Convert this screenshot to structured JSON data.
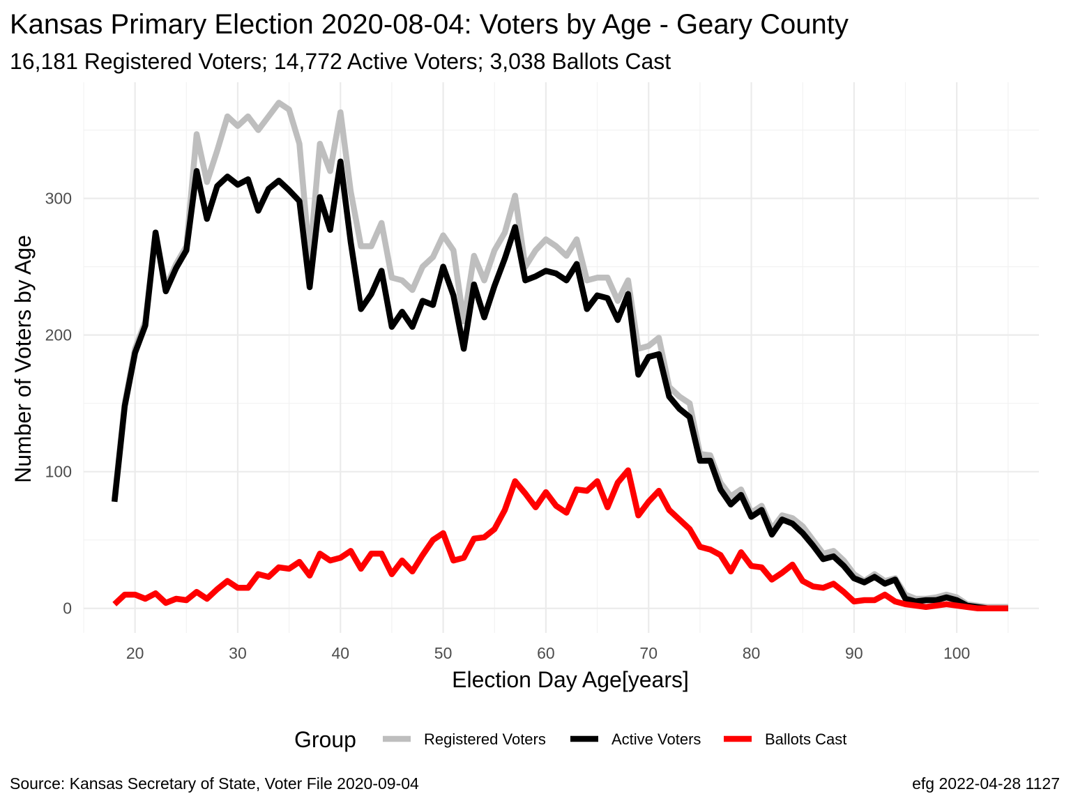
{
  "chart_data": {
    "type": "line",
    "title": "Kansas Primary Election 2020-08-04:  Voters by Age - Geary County",
    "subtitle": "16,181 Registered Voters; 14,772 Active Voters; 3,038 Ballots Cast",
    "xlabel": "Election Day Age[years]",
    "ylabel": "Number of Voters by Age",
    "xlim": [
      15,
      108
    ],
    "ylim": [
      -18,
      385
    ],
    "x_ticks": [
      20,
      30,
      40,
      50,
      60,
      70,
      80,
      90,
      100
    ],
    "y_ticks": [
      0,
      100,
      200,
      300
    ],
    "grid": true,
    "legend": {
      "title": "Group",
      "position": "bottom"
    },
    "x": [
      18,
      19,
      20,
      21,
      22,
      23,
      24,
      25,
      26,
      27,
      28,
      29,
      30,
      31,
      32,
      33,
      34,
      35,
      36,
      37,
      38,
      39,
      40,
      41,
      42,
      43,
      44,
      45,
      46,
      47,
      48,
      49,
      50,
      51,
      52,
      53,
      54,
      55,
      56,
      57,
      58,
      59,
      60,
      61,
      62,
      63,
      64,
      65,
      66,
      67,
      68,
      69,
      70,
      71,
      72,
      73,
      74,
      75,
      76,
      77,
      78,
      79,
      80,
      81,
      82,
      83,
      84,
      85,
      86,
      87,
      88,
      89,
      90,
      91,
      92,
      93,
      94,
      95,
      96,
      97,
      98,
      99,
      100,
      101,
      102,
      103,
      104,
      105
    ],
    "series": [
      {
        "name": "Registered Voters",
        "color": "#bebebe",
        "values": [
          80,
          150,
          190,
          210,
          275,
          235,
          252,
          265,
          347,
          312,
          335,
          360,
          353,
          360,
          350,
          360,
          370,
          365,
          340,
          255,
          340,
          320,
          363,
          305,
          265,
          265,
          282,
          242,
          240,
          233,
          250,
          257,
          273,
          262,
          210,
          258,
          240,
          262,
          275,
          302,
          250,
          262,
          270,
          265,
          258,
          270,
          240,
          242,
          242,
          225,
          240,
          190,
          192,
          198,
          162,
          155,
          150,
          113,
          112,
          92,
          82,
          87,
          70,
          75,
          58,
          68,
          66,
          60,
          50,
          40,
          42,
          35,
          25,
          20,
          25,
          20,
          22,
          10,
          7,
          7,
          8,
          10,
          8,
          3,
          2,
          1,
          1,
          1
        ]
      },
      {
        "name": "Active Voters",
        "color": "#000000",
        "values": [
          78,
          148,
          187,
          207,
          275,
          232,
          249,
          262,
          320,
          285,
          309,
          316,
          310,
          314,
          291,
          307,
          313,
          306,
          298,
          235,
          301,
          277,
          327,
          268,
          219,
          230,
          247,
          206,
          217,
          206,
          225,
          222,
          250,
          229,
          190,
          237,
          213,
          236,
          256,
          279,
          240,
          243,
          247,
          245,
          240,
          252,
          219,
          229,
          227,
          211,
          230,
          171,
          184,
          186,
          155,
          146,
          140,
          108,
          108,
          87,
          76,
          83,
          67,
          72,
          54,
          65,
          62,
          55,
          46,
          36,
          38,
          31,
          22,
          19,
          23,
          18,
          21,
          7,
          5,
          6,
          6,
          8,
          6,
          2,
          1,
          0,
          0,
          0
        ]
      },
      {
        "name": "Ballots Cast",
        "color": "#ff0000",
        "values": [
          3,
          10,
          10,
          7,
          11,
          4,
          7,
          6,
          12,
          7,
          14,
          20,
          15,
          15,
          25,
          23,
          30,
          29,
          34,
          24,
          40,
          35,
          37,
          42,
          29,
          40,
          40,
          25,
          35,
          27,
          39,
          50,
          55,
          35,
          37,
          51,
          52,
          58,
          72,
          93,
          84,
          74,
          85,
          75,
          70,
          87,
          86,
          93,
          74,
          92,
          101,
          68,
          78,
          86,
          72,
          65,
          58,
          45,
          43,
          39,
          27,
          41,
          31,
          30,
          21,
          26,
          32,
          20,
          16,
          15,
          18,
          12,
          5,
          6,
          6,
          10,
          5,
          3,
          2,
          1,
          2,
          3,
          2,
          1,
          0,
          0,
          0,
          0
        ]
      }
    ]
  },
  "caption": {
    "left": "Source:  Kansas Secretary of State, Voter File  2020-09-04",
    "right": "efg 2022-04-28 1127"
  }
}
